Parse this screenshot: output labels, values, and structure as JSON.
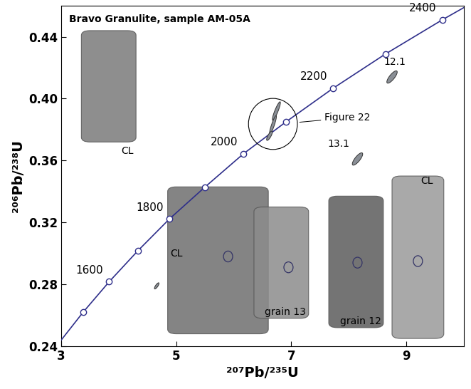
{
  "chart_data": {
    "type": "concordia",
    "title": "Bravo Granulite, sample AM-05A",
    "x_label": "²⁰⁷Pb/²³⁵U",
    "y_label": "²⁰⁶Pb/²³⁸U",
    "xlim": [
      3,
      10
    ],
    "ylim": [
      0.24,
      0.46
    ],
    "xticks": [
      3,
      5,
      7,
      9
    ],
    "yticks": [
      0.24,
      0.28,
      0.32,
      0.36,
      {
        "value": 0.4,
        "label": "0.40"
      },
      0.44
    ],
    "grid": false,
    "color": "#2e2e8a",
    "marker": "circle",
    "concordia": {
      "x": [
        3.0,
        3.381,
        3.834,
        4.335,
        4.882,
        5.496,
        6.168,
        6.91,
        7.729,
        8.633,
        9.63,
        10.0
      ],
      "y": [
        0.244,
        0.262,
        0.2817,
        0.3018,
        0.3223,
        0.3428,
        0.3644,
        0.3851,
        0.4068,
        0.4288,
        0.4511,
        0.4589
      ]
    },
    "age_markers": {
      "x": [
        3.381,
        3.834,
        4.335,
        4.882,
        5.496,
        6.168,
        6.91,
        7.729,
        8.633,
        9.63
      ],
      "y": [
        0.262,
        0.2817,
        0.3018,
        0.3223,
        0.3428,
        0.3644,
        0.3851,
        0.4068,
        0.4288,
        0.4511
      ],
      "labels": [
        null,
        1600,
        null,
        1800,
        null,
        2000,
        null,
        2200,
        null,
        2400
      ]
    },
    "spots": [
      {
        "x": 8.75,
        "y": 0.414,
        "sx": 0.09,
        "sy": 0.004,
        "rho": 0.8,
        "label": "12.1"
      },
      {
        "x": 8.15,
        "y": 0.361,
        "sx": 0.09,
        "sy": 0.004,
        "rho": 0.8,
        "label": "13.1"
      },
      {
        "x": 6.74,
        "y": 0.392,
        "sx": 0.07,
        "sy": 0.006,
        "rho": 0.9,
        "label": null
      },
      {
        "x": 6.68,
        "y": 0.383,
        "sx": 0.06,
        "sy": 0.006,
        "rho": 0.9,
        "label": null
      },
      {
        "x": 6.62,
        "y": 0.376,
        "sx": 0.05,
        "sy": 0.003,
        "rho": 0.8,
        "label": null
      },
      {
        "x": 4.66,
        "y": 0.279,
        "sx": 0.04,
        "sy": 0.002,
        "rho": 0.8,
        "label": null
      }
    ],
    "callout": "Figure 22",
    "image_labels": [
      "CL",
      "CL",
      "grain 13",
      "grain 12",
      "CL"
    ]
  }
}
